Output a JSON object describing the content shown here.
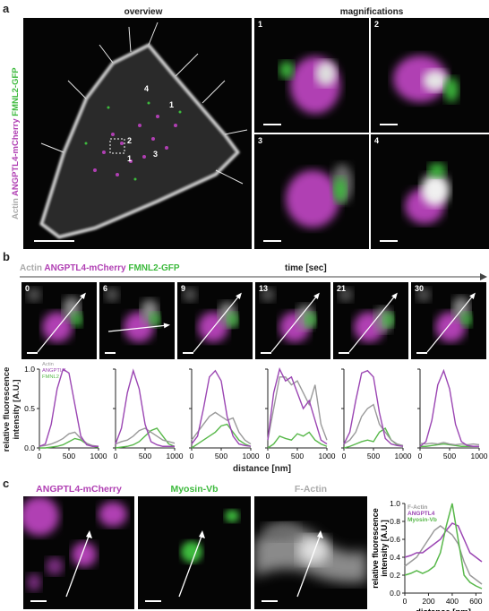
{
  "colors": {
    "magenta": "#b03fb3",
    "green": "#3dba3d",
    "gray": "#9a9a9a",
    "actin": "#bfbfbf",
    "purple_line": "#9b46b3",
    "green_line": "#58b84a"
  },
  "panel_a": {
    "label": "a",
    "overview_header": "overview",
    "magnifications_header": "magnifications",
    "channel_labels": {
      "actin": "Actin",
      "angptl4": "ANGPTL4-mCherry",
      "fmnl2": "FMNL2-GFP"
    },
    "mag_numbers": [
      "1",
      "2",
      "3",
      "4"
    ],
    "overview_markers": [
      "1",
      "2",
      "3",
      "4"
    ]
  },
  "panel_b": {
    "label": "b",
    "legend": {
      "actin": "Actin",
      "angptl4": "ANGPTL4-mCherry",
      "fmnl2": "FMNL2-GFP"
    },
    "time_label": "time [sec]",
    "frames": [
      "0",
      "6",
      "9",
      "13",
      "21",
      "30"
    ],
    "y_label_line1": "relative fluorescence",
    "y_label_line2": "intensity [A.U.]",
    "x_label": "distance [nm]",
    "legend_small": {
      "actin": "Actin",
      "angptl4": "ANGPTL4",
      "fmnl2": "FMNL2"
    },
    "y_ticks": [
      "1.0",
      "0.5",
      "0.0"
    ],
    "x_ticks": [
      "0",
      "500",
      "1000"
    ]
  },
  "panel_c": {
    "label": "c",
    "headers": [
      "ANGPTL4-mCherry",
      "Myosin-Vb",
      "F-Actin"
    ],
    "y_label_line1": "relative fluorescence",
    "y_label_line2": "intensity [A.U.]",
    "x_label": "distance [nm]",
    "legend": {
      "factin": "F-Actin",
      "angptl4": "ANGPTL4",
      "myosin": "Myosin-Vb"
    },
    "y_ticks": [
      "1.0",
      "0.8",
      "0.6",
      "0.4",
      "0.2",
      "0.0"
    ],
    "x_ticks": [
      "0",
      "200",
      "400",
      "600"
    ]
  },
  "chart_data": [
    {
      "type": "line",
      "panel": "b",
      "frame": "0",
      "xlim": [
        0,
        1000
      ],
      "ylim": [
        0,
        1
      ],
      "x": [
        0,
        100,
        200,
        300,
        400,
        500,
        600,
        700,
        800,
        900,
        1000
      ],
      "series": [
        {
          "name": "ANGPTL4",
          "values": [
            0.02,
            0.05,
            0.3,
            0.75,
            1.0,
            0.95,
            0.55,
            0.15,
            0.04,
            0.02,
            0.02
          ]
        },
        {
          "name": "Actin",
          "values": [
            0.02,
            0.03,
            0.05,
            0.08,
            0.12,
            0.18,
            0.2,
            0.12,
            0.06,
            0.03,
            0.02
          ]
        },
        {
          "name": "FMNL2",
          "values": [
            0.0,
            0.0,
            0.01,
            0.02,
            0.04,
            0.08,
            0.12,
            0.1,
            0.05,
            0.02,
            0.01
          ]
        }
      ]
    },
    {
      "type": "line",
      "panel": "b",
      "frame": "6",
      "xlim": [
        0,
        1000
      ],
      "ylim": [
        0,
        1
      ],
      "x": [
        0,
        100,
        200,
        300,
        400,
        500,
        600,
        700,
        800,
        900,
        1000
      ],
      "series": [
        {
          "name": "ANGPTL4",
          "values": [
            0.05,
            0.25,
            0.7,
            0.98,
            0.75,
            0.3,
            0.08,
            0.04,
            0.02,
            0.02,
            0.02
          ]
        },
        {
          "name": "Actin",
          "values": [
            0.05,
            0.08,
            0.1,
            0.15,
            0.22,
            0.25,
            0.2,
            0.15,
            0.1,
            0.08,
            0.06
          ]
        },
        {
          "name": "FMNL2",
          "values": [
            0.0,
            0.01,
            0.02,
            0.04,
            0.08,
            0.15,
            0.22,
            0.25,
            0.15,
            0.05,
            0.02
          ]
        }
      ]
    },
    {
      "type": "line",
      "panel": "b",
      "frame": "9",
      "xlim": [
        0,
        1000
      ],
      "ylim": [
        0,
        1
      ],
      "x": [
        0,
        100,
        200,
        300,
        400,
        500,
        600,
        700,
        800,
        900,
        1000
      ],
      "series": [
        {
          "name": "ANGPTL4",
          "values": [
            0.05,
            0.15,
            0.5,
            0.9,
            0.98,
            0.85,
            0.4,
            0.15,
            0.05,
            0.03,
            0.02
          ]
        },
        {
          "name": "Actin",
          "values": [
            0.1,
            0.2,
            0.3,
            0.4,
            0.45,
            0.4,
            0.35,
            0.38,
            0.2,
            0.1,
            0.05
          ]
        },
        {
          "name": "FMNL2",
          "values": [
            0.0,
            0.05,
            0.1,
            0.15,
            0.2,
            0.28,
            0.3,
            0.2,
            0.1,
            0.05,
            0.02
          ]
        }
      ]
    },
    {
      "type": "line",
      "panel": "b",
      "frame": "13",
      "xlim": [
        0,
        1000
      ],
      "ylim": [
        0,
        1
      ],
      "x": [
        0,
        100,
        200,
        300,
        400,
        500,
        600,
        700,
        800,
        900,
        1000
      ],
      "series": [
        {
          "name": "ANGPTL4",
          "values": [
            0.1,
            0.7,
            1.0,
            0.85,
            0.9,
            0.7,
            0.5,
            0.6,
            0.35,
            0.1,
            0.05
          ]
        },
        {
          "name": "Actin",
          "values": [
            0.1,
            0.5,
            0.9,
            0.9,
            0.8,
            0.85,
            0.7,
            0.55,
            0.8,
            0.3,
            0.1
          ]
        },
        {
          "name": "FMNL2",
          "values": [
            0.0,
            0.05,
            0.15,
            0.12,
            0.1,
            0.18,
            0.15,
            0.2,
            0.1,
            0.05,
            0.02
          ]
        }
      ]
    },
    {
      "type": "line",
      "panel": "b",
      "frame": "21",
      "xlim": [
        0,
        1000
      ],
      "ylim": [
        0,
        1
      ],
      "x": [
        0,
        100,
        200,
        300,
        400,
        500,
        600,
        700,
        800,
        900,
        1000
      ],
      "series": [
        {
          "name": "ANGPTL4",
          "values": [
            0.05,
            0.2,
            0.6,
            0.95,
            0.98,
            0.9,
            0.45,
            0.12,
            0.05,
            0.03,
            0.02
          ]
        },
        {
          "name": "Actin",
          "values": [
            0.05,
            0.1,
            0.2,
            0.4,
            0.5,
            0.55,
            0.3,
            0.2,
            0.1,
            0.05,
            0.03
          ]
        },
        {
          "name": "FMNL2",
          "values": [
            0.0,
            0.02,
            0.05,
            0.08,
            0.1,
            0.08,
            0.2,
            0.25,
            0.1,
            0.04,
            0.02
          ]
        }
      ]
    },
    {
      "type": "line",
      "panel": "b",
      "frame": "30",
      "xlim": [
        0,
        1000
      ],
      "ylim": [
        0,
        1
      ],
      "x": [
        0,
        100,
        200,
        300,
        400,
        500,
        600,
        700,
        800,
        900,
        1000
      ],
      "series": [
        {
          "name": "ANGPTL4",
          "values": [
            0.02,
            0.08,
            0.35,
            0.8,
            0.98,
            0.75,
            0.3,
            0.08,
            0.03,
            0.02,
            0.02
          ]
        },
        {
          "name": "Actin",
          "values": [
            0.06,
            0.05,
            0.06,
            0.05,
            0.07,
            0.05,
            0.04,
            0.05,
            0.04,
            0.05,
            0.04
          ]
        },
        {
          "name": "FMNL2",
          "values": [
            0.02,
            0.02,
            0.03,
            0.04,
            0.05,
            0.04,
            0.03,
            0.02,
            0.02,
            0.02,
            0.02
          ]
        }
      ]
    },
    {
      "type": "line",
      "panel": "c",
      "xlim": [
        0,
        650
      ],
      "ylim": [
        0,
        1
      ],
      "x": [
        0,
        50,
        100,
        150,
        200,
        250,
        300,
        350,
        400,
        450,
        500,
        550,
        600,
        650
      ],
      "series": [
        {
          "name": "F-Actin",
          "values": [
            0.3,
            0.35,
            0.4,
            0.5,
            0.6,
            0.7,
            0.75,
            0.7,
            0.65,
            0.55,
            0.35,
            0.2,
            0.15,
            0.1
          ]
        },
        {
          "name": "ANGPTL4",
          "values": [
            0.4,
            0.42,
            0.45,
            0.45,
            0.5,
            0.55,
            0.6,
            0.7,
            0.78,
            0.75,
            0.6,
            0.45,
            0.4,
            0.35
          ]
        },
        {
          "name": "Myosin-Vb",
          "values": [
            0.2,
            0.22,
            0.25,
            0.22,
            0.25,
            0.3,
            0.45,
            0.75,
            1.0,
            0.6,
            0.2,
            0.12,
            0.08,
            0.05
          ]
        }
      ]
    }
  ]
}
